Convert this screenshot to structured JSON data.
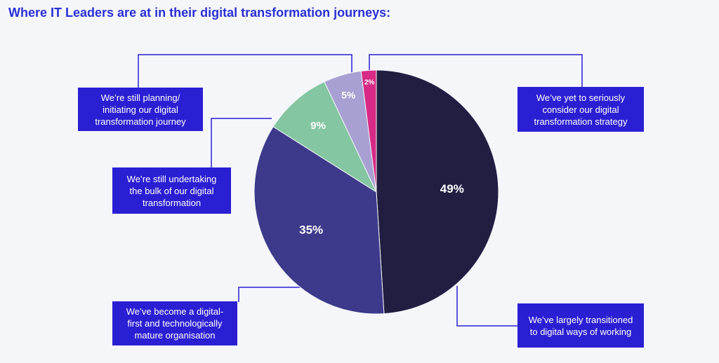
{
  "chart_data": {
    "type": "pie",
    "title": "Where IT Leaders are at in their digital transformation journeys:",
    "slices": [
      {
        "name": "We’ve largely transitioned to digital ways of working",
        "value": 49,
        "label": "49%",
        "color": "#211e42"
      },
      {
        "name": "We’ve become a digital-first and technologically mature organisation",
        "value": 35,
        "label": "35%",
        "color": "#3d3a8b"
      },
      {
        "name": "We’re still undertaking the bulk of our digital transformation",
        "value": 9,
        "label": "9%",
        "color": "#84c6a1"
      },
      {
        "name": "We’re still planning/ initiating our digital transformation journey",
        "value": 5,
        "label": "5%",
        "color": "#a8a0d2"
      },
      {
        "name": "We’ve yet to seriously consider our digital transformation strategy",
        "value": 2,
        "label": "2%",
        "color": "#d62a86"
      }
    ]
  },
  "callouts": {
    "planning": "We’re still planning/ initiating our digital transformation journey",
    "undertaking": "We’re still undertaking the bulk of our digital transformation",
    "digital_first": "We’ve become a digital-first and technologically mature organisation",
    "yet_to": "We’ve yet to seriously consider our digital transformation strategy",
    "transitioned": "We’ve largely transitioned to digital ways of working"
  },
  "colors": {
    "accent": "#2b1fd3",
    "title": "#2a2fd6",
    "background": "#f5f6fa"
  }
}
